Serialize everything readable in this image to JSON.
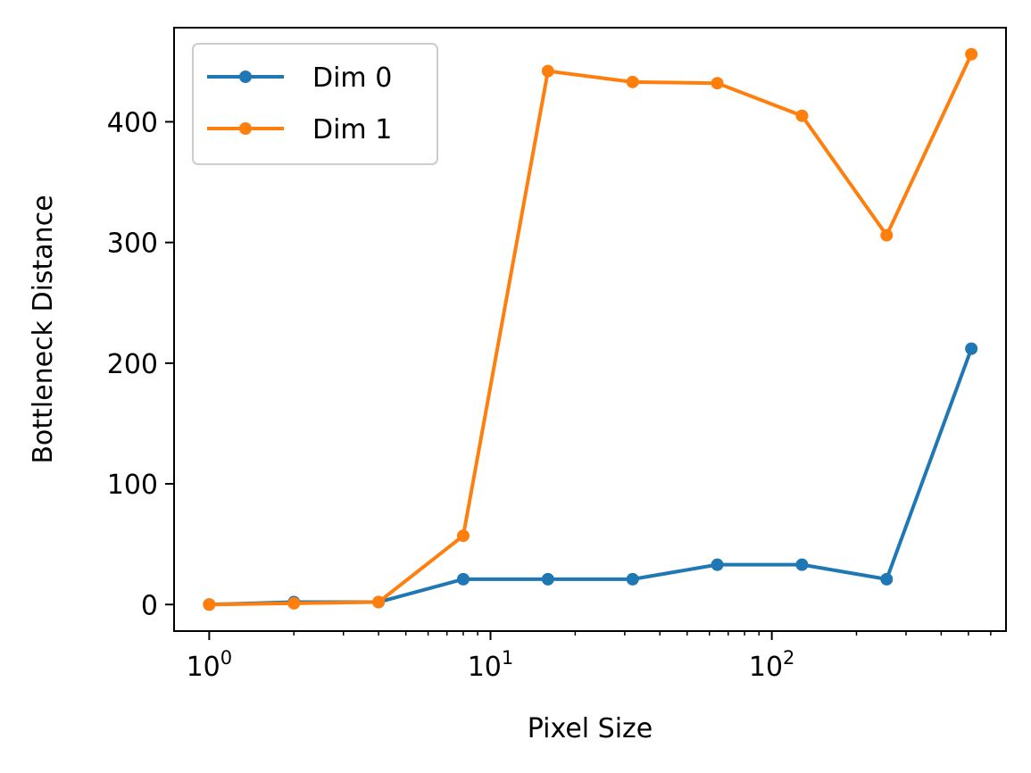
{
  "chart_data": {
    "type": "line",
    "title": "",
    "xlabel": "Pixel Size",
    "ylabel": "Bottleneck Distance",
    "xscale": "log",
    "x": [
      1,
      2,
      4,
      8,
      16,
      32,
      64,
      128,
      256,
      512
    ],
    "xlim": [
      0.75,
      680
    ],
    "ylim": [
      -22,
      478
    ],
    "xticks": [
      {
        "value": 1,
        "base": "10",
        "exp": "0"
      },
      {
        "value": 10,
        "base": "10",
        "exp": "1"
      },
      {
        "value": 100,
        "base": "10",
        "exp": "2"
      }
    ],
    "yticks": [
      0,
      100,
      200,
      300,
      400
    ],
    "legend_position": "upper-left",
    "grid": false,
    "series": [
      {
        "name": "Dim 0",
        "color": "#1f77b4",
        "values": [
          0,
          2,
          2,
          21,
          21,
          21,
          33,
          33,
          21,
          212
        ]
      },
      {
        "name": "Dim 1",
        "color": "#ff7f0e",
        "values": [
          0,
          1,
          2,
          57,
          442,
          433,
          432,
          405,
          306,
          456
        ]
      }
    ]
  }
}
